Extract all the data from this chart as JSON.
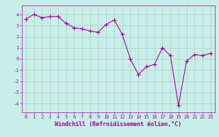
{
  "x": [
    0,
    1,
    2,
    3,
    4,
    5,
    6,
    7,
    8,
    9,
    10,
    11,
    12,
    13,
    14,
    15,
    16,
    17,
    18,
    19,
    20,
    21,
    22,
    23
  ],
  "y": [
    3.6,
    4.0,
    3.7,
    3.8,
    3.8,
    3.2,
    2.8,
    2.7,
    2.5,
    2.4,
    3.1,
    3.5,
    2.2,
    0.0,
    -1.4,
    -0.7,
    -0.5,
    1.0,
    0.3,
    -4.2,
    -0.2,
    0.4,
    0.3,
    0.5
  ],
  "line_color": "#990099",
  "marker": "D",
  "marker_size": 2.0,
  "bg_color": "#c8eee8",
  "grid_color": "#b0c8c4",
  "xlabel": "Windchill (Refroidissement éolien,°C)",
  "xlim": [
    -0.5,
    23.5
  ],
  "ylim": [
    -4.8,
    4.8
  ],
  "yticks": [
    -4,
    -3,
    -2,
    -1,
    0,
    1,
    2,
    3,
    4
  ],
  "xticks": [
    0,
    1,
    2,
    3,
    4,
    5,
    6,
    7,
    8,
    9,
    10,
    11,
    12,
    13,
    14,
    15,
    16,
    17,
    18,
    19,
    20,
    21,
    22,
    23
  ],
  "tick_color": "#990099",
  "tick_fontsize": 5.0,
  "xlabel_fontsize": 6.0,
  "line_width": 0.8
}
